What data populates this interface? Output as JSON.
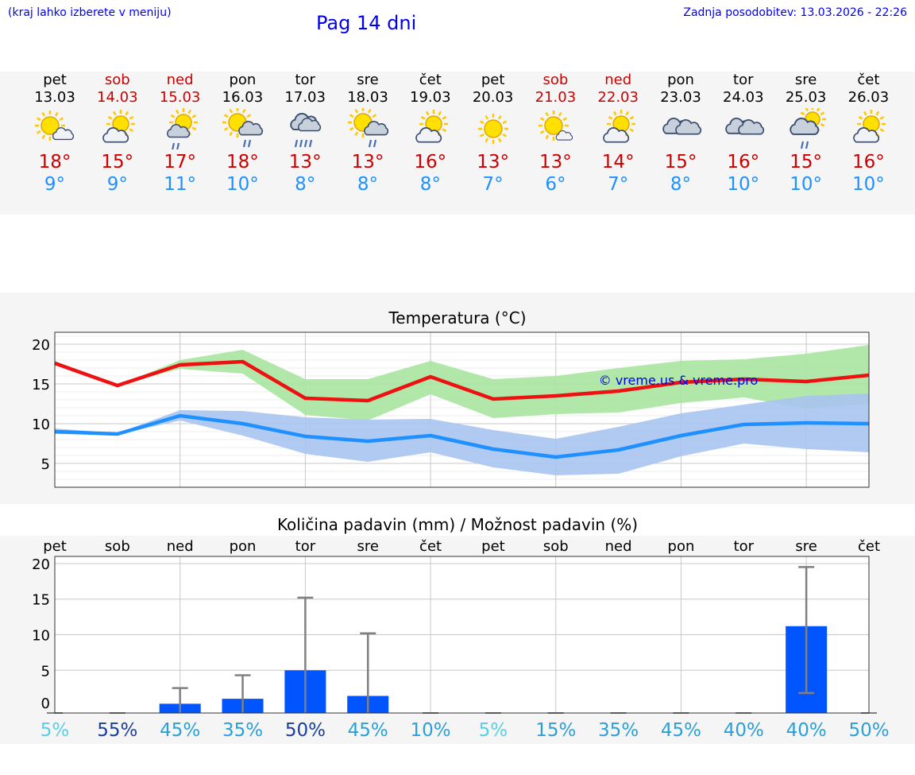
{
  "header": {
    "left_note": "(kraj lahko izberete v meniju)",
    "title": "Pag 14 dni",
    "updated": "Zadnja posodobitev: 13.03.2026 - 22:26"
  },
  "colors": {
    "link": "#0000ee",
    "max_temp": "#cc0000",
    "min_temp": "#1e90ff",
    "max_band": "#a8e4a0",
    "min_band": "#a9c4f0",
    "bar": "#0055ff"
  },
  "days": [
    {
      "name": "pet",
      "date": "13.03",
      "weekend": false,
      "icon": "sun-cloud-icon",
      "tmax": "18°",
      "tmin": "9°"
    },
    {
      "name": "sob",
      "date": "14.03",
      "weekend": true,
      "icon": "cloud-sun-icon",
      "tmax": "15°",
      "tmin": "9°"
    },
    {
      "name": "ned",
      "date": "15.03",
      "weekend": true,
      "icon": "sun-rain-icon",
      "tmax": "17°",
      "tmin": "11°"
    },
    {
      "name": "pon",
      "date": "16.03",
      "weekend": false,
      "icon": "sun-cloud-rain-icon",
      "tmax": "18°",
      "tmin": "10°"
    },
    {
      "name": "tor",
      "date": "17.03",
      "weekend": false,
      "icon": "cloud-heavy-rain-icon",
      "tmax": "13°",
      "tmin": "8°"
    },
    {
      "name": "sre",
      "date": "18.03",
      "weekend": false,
      "icon": "sun-cloud-rain-icon",
      "tmax": "13°",
      "tmin": "8°"
    },
    {
      "name": "čet",
      "date": "19.03",
      "weekend": false,
      "icon": "cloud-sun-icon",
      "tmax": "16°",
      "tmin": "8°"
    },
    {
      "name": "pet",
      "date": "20.03",
      "weekend": false,
      "icon": "sun-icon",
      "tmax": "13°",
      "tmin": "7°"
    },
    {
      "name": "sob",
      "date": "21.03",
      "weekend": true,
      "icon": "sun-small-cloud-icon",
      "tmax": "13°",
      "tmin": "6°"
    },
    {
      "name": "ned",
      "date": "22.03",
      "weekend": true,
      "icon": "cloud-sun-icon",
      "tmax": "14°",
      "tmin": "7°"
    },
    {
      "name": "pon",
      "date": "23.03",
      "weekend": false,
      "icon": "cloudy-icon",
      "tmax": "15°",
      "tmin": "8°"
    },
    {
      "name": "tor",
      "date": "24.03",
      "weekend": false,
      "icon": "cloudy-icon",
      "tmax": "16°",
      "tmin": "10°"
    },
    {
      "name": "sre",
      "date": "25.03",
      "weekend": false,
      "icon": "cloud-rain-icon",
      "tmax": "15°",
      "tmin": "10°"
    },
    {
      "name": "čet",
      "date": "26.03",
      "weekend": false,
      "icon": "cloud-sun-icon",
      "tmax": "16°",
      "tmin": "10°"
    }
  ],
  "chart_data": [
    {
      "type": "line",
      "title": "Temperatura (°C)",
      "xlabel": "",
      "ylabel": "",
      "ylim": [
        2,
        21.5
      ],
      "yticks": [
        "5",
        "10",
        "15",
        "20"
      ],
      "watermark": "© vreme.us & vreme.pro",
      "x": [
        0,
        1,
        2,
        3,
        4,
        5,
        6,
        7,
        8,
        9,
        10,
        11,
        12,
        13
      ],
      "series": [
        {
          "name": "max",
          "values": [
            17.6,
            14.8,
            17.4,
            17.8,
            13.2,
            12.9,
            15.9,
            13.1,
            13.5,
            14.1,
            15.2,
            15.6,
            15.3,
            16.1
          ],
          "band_low": [
            17.8,
            14.8,
            16.9,
            16.3,
            11.1,
            10.4,
            13.7,
            10.7,
            11.2,
            11.4,
            12.6,
            13.3,
            11.9,
            12.5
          ],
          "band_high": [
            17.9,
            14.8,
            18.0,
            19.3,
            15.6,
            15.6,
            17.9,
            15.6,
            16.0,
            17.0,
            17.9,
            18.1,
            18.8,
            19.9
          ]
        },
        {
          "name": "min",
          "values": [
            9.0,
            8.7,
            11.0,
            10.0,
            8.4,
            7.8,
            8.5,
            6.8,
            5.8,
            6.7,
            8.5,
            9.9,
            10.1,
            10.0
          ],
          "band_low": [
            8.7,
            8.6,
            10.4,
            8.5,
            6.2,
            5.2,
            6.4,
            4.5,
            3.5,
            3.7,
            5.9,
            7.5,
            6.8,
            6.4
          ],
          "band_high": [
            9.4,
            8.8,
            11.7,
            11.6,
            10.8,
            10.5,
            10.6,
            9.2,
            8.1,
            9.6,
            11.3,
            12.4,
            13.5,
            13.8
          ]
        }
      ]
    },
    {
      "type": "bar",
      "title": "Količina padavin (mm) / Možnost padavin (%)",
      "xlabel": "",
      "ylabel": "",
      "ylim": [
        -1,
        21
      ],
      "yticks": [
        "0",
        "5",
        "10",
        "15",
        "20"
      ],
      "categories": [
        "pet",
        "sob",
        "ned",
        "pon",
        "tor",
        "sre",
        "čet",
        "pet",
        "sob",
        "ned",
        "pon",
        "tor",
        "sre",
        "čet"
      ],
      "values": [
        0,
        0,
        0.3,
        1.0,
        5.0,
        1.4,
        0,
        0,
        0,
        0,
        0,
        0,
        11.2,
        0
      ],
      "err_low": [
        0,
        0,
        0,
        0,
        0,
        0,
        0,
        0,
        0,
        0,
        0,
        0,
        1.8,
        0
      ],
      "err_high": [
        0,
        0,
        2.5,
        4.3,
        15.2,
        10.2,
        0,
        0,
        0,
        0,
        0,
        0,
        19.5,
        0
      ],
      "probabilities": [
        "5%",
        "55%",
        "45%",
        "35%",
        "50%",
        "45%",
        "10%",
        "5%",
        "15%",
        "35%",
        "45%",
        "40%",
        "40%",
        "50%"
      ],
      "prob_colors": [
        "#55d0e8",
        "#1a3f9c",
        "#2aa0d8",
        "#2aa0d8",
        "#1a3f9c",
        "#2aa0d8",
        "#2aa0d8",
        "#55d0e8",
        "#2aa0d8",
        "#2aa0d8",
        "#2aa0d8",
        "#2aa0d8",
        "#2aa0d8",
        "#2aa0d8"
      ]
    }
  ]
}
